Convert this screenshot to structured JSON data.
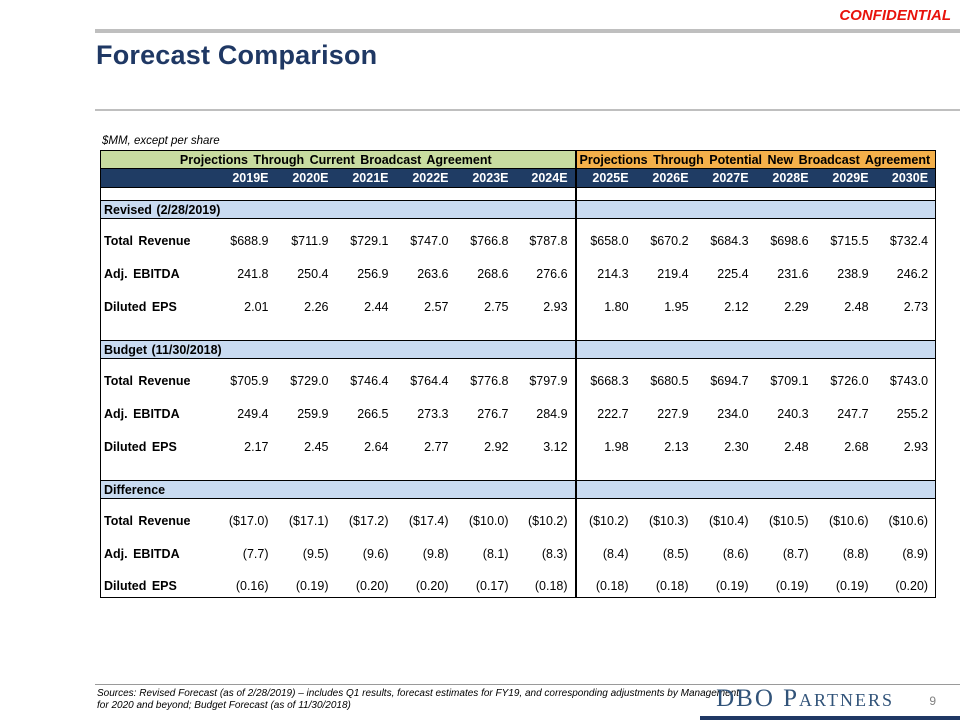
{
  "page": {
    "confidential": "CONFIDENTIAL",
    "title": "Forecast Comparison"
  },
  "table": {
    "units_note": "$MM, except per share",
    "group_headers": {
      "left": "Projections Through Current Broadcast Agreement",
      "right": "Projections Through Potential New Broadcast Agreement"
    },
    "years_left": [
      "2019E",
      "2020E",
      "2021E",
      "2022E",
      "2023E",
      "2024E"
    ],
    "years_right": [
      "2025E",
      "2026E",
      "2027E",
      "2028E",
      "2029E",
      "2030E"
    ],
    "sections": [
      {
        "header": "Revised (2/28/2019)",
        "rows": [
          {
            "label": "Total Revenue",
            "left": [
              "$688.9",
              "$711.9",
              "$729.1",
              "$747.0",
              "$766.8",
              "$787.8"
            ],
            "right": [
              "$658.0",
              "$670.2",
              "$684.3",
              "$698.6",
              "$715.5",
              "$732.4"
            ]
          },
          {
            "label": "Adj. EBITDA",
            "left": [
              "241.8",
              "250.4",
              "256.9",
              "263.6",
              "268.6",
              "276.6"
            ],
            "right": [
              "214.3",
              "219.4",
              "225.4",
              "231.6",
              "238.9",
              "246.2"
            ]
          },
          {
            "label": "Diluted EPS",
            "left": [
              "2.01",
              "2.26",
              "2.44",
              "2.57",
              "2.75",
              "2.93"
            ],
            "right": [
              "1.80",
              "1.95",
              "2.12",
              "2.29",
              "2.48",
              "2.73"
            ]
          }
        ]
      },
      {
        "header": "Budget (11/30/2018)",
        "rows": [
          {
            "label": "Total Revenue",
            "left": [
              "$705.9",
              "$729.0",
              "$746.4",
              "$764.4",
              "$776.8",
              "$797.9"
            ],
            "right": [
              "$668.3",
              "$680.5",
              "$694.7",
              "$709.1",
              "$726.0",
              "$743.0"
            ]
          },
          {
            "label": "Adj. EBITDA",
            "left": [
              "249.4",
              "259.9",
              "266.5",
              "273.3",
              "276.7",
              "284.9"
            ],
            "right": [
              "222.7",
              "227.9",
              "234.0",
              "240.3",
              "247.7",
              "255.2"
            ]
          },
          {
            "label": "Diluted EPS",
            "left": [
              "2.17",
              "2.45",
              "2.64",
              "2.77",
              "2.92",
              "3.12"
            ],
            "right": [
              "1.98",
              "2.13",
              "2.30",
              "2.48",
              "2.68",
              "2.93"
            ]
          }
        ]
      },
      {
        "header": "Difference",
        "rows": [
          {
            "label": "Total Revenue",
            "left": [
              "($17.0)",
              "($17.1)",
              "($17.2)",
              "($17.4)",
              "($10.0)",
              "($10.2)"
            ],
            "right": [
              "($10.2)",
              "($10.3)",
              "($10.4)",
              "($10.5)",
              "($10.6)",
              "($10.6)"
            ]
          },
          {
            "label": "Adj. EBITDA",
            "left": [
              "(7.7)",
              "(9.5)",
              "(9.6)",
              "(9.8)",
              "(8.1)",
              "(8.3)"
            ],
            "right": [
              "(8.4)",
              "(8.5)",
              "(8.6)",
              "(8.7)",
              "(8.8)",
              "(8.9)"
            ]
          },
          {
            "label": "Diluted EPS",
            "left": [
              "(0.16)",
              "(0.19)",
              "(0.20)",
              "(0.20)",
              "(0.17)",
              "(0.18)"
            ],
            "right": [
              "(0.18)",
              "(0.18)",
              "(0.19)",
              "(0.19)",
              "(0.19)",
              "(0.20)"
            ]
          }
        ]
      }
    ]
  },
  "footer": {
    "sources_line1": "Sources: Revised Forecast (as of 2/28/2019) – includes Q1 results, forecast estimates for FY19, and corresponding adjustments by Management",
    "sources_line2": "for 2020 and beyond; Budget Forecast (as of 11/30/2018)",
    "logo": "DBO Partners",
    "page_number": "9"
  },
  "colors": {
    "accent_navy": "#1F3864",
    "table_year_navy": "#1F3C64",
    "header_green": "#C8DCA0",
    "header_orange": "#F4B04A",
    "section_blue": "#C9DBF1",
    "confidential_red": "#E8130C",
    "logo_blue": "#315379"
  }
}
